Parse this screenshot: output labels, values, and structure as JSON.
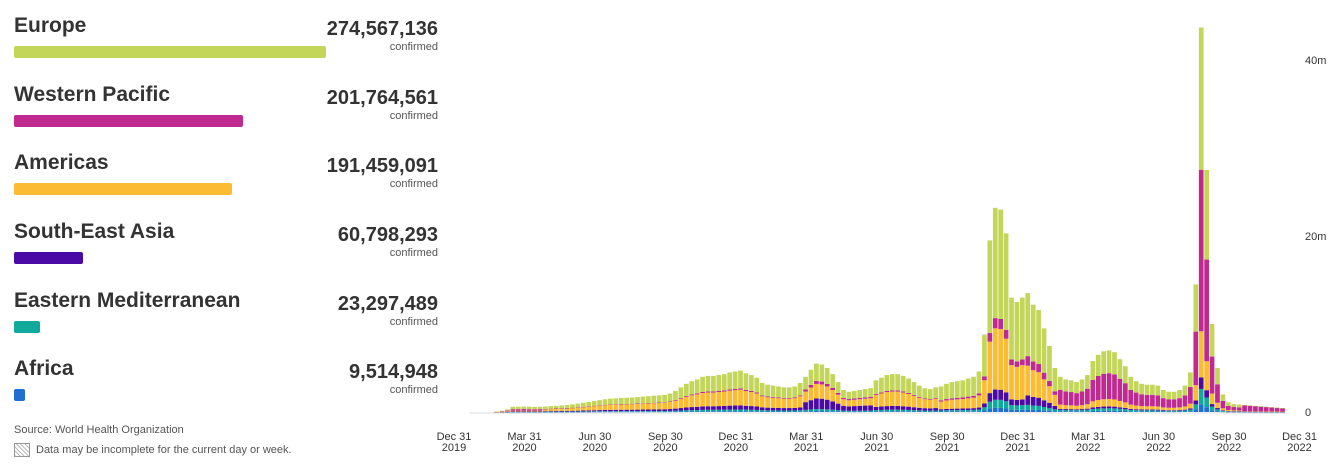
{
  "regions": [
    {
      "name": "Europe",
      "count": "274,567,136",
      "sub": "confirmed",
      "color": "#c4d65a",
      "value": 274567136
    },
    {
      "name": "Western Pacific",
      "count": "201,764,561",
      "sub": "confirmed",
      "color": "#c0298f",
      "value": 201764561
    },
    {
      "name": "Americas",
      "count": "191,459,091",
      "sub": "confirmed",
      "color": "#fbbc33",
      "value": 191459091
    },
    {
      "name": "South-East Asia",
      "count": "60,798,293",
      "sub": "confirmed",
      "color": "#4b0aa5",
      "value": 60798293
    },
    {
      "name": "Eastern Mediterranean",
      "count": "23,297,489",
      "sub": "confirmed",
      "color": "#11a99b",
      "value": 23297489
    },
    {
      "name": "Africa",
      "count": "9,514,948",
      "sub": "confirmed",
      "color": "#1f6fd0",
      "value": 9514948
    }
  ],
  "footer": {
    "source": "Source: World Health Organization",
    "note": "Data may be incomplete for the current day or week."
  },
  "chart_data": {
    "type": "bar",
    "stacked": true,
    "ylim": [
      0,
      44000000
    ],
    "y_ticks": [
      {
        "value": 0,
        "label": "0"
      },
      {
        "value": 20000000,
        "label": "20m"
      },
      {
        "value": 40000000,
        "label": "40m"
      }
    ],
    "x_ticks": [
      {
        "line1": "Dec 31",
        "line2": "2019",
        "week": 0
      },
      {
        "line1": "Mar 31",
        "line2": "2020",
        "week": 13
      },
      {
        "line1": "Jun 30",
        "line2": "2020",
        "week": 26
      },
      {
        "line1": "Sep 30",
        "line2": "2020",
        "week": 39
      },
      {
        "line1": "Dec 31",
        "line2": "2020",
        "week": 52
      },
      {
        "line1": "Mar 31",
        "line2": "2021",
        "week": 65
      },
      {
        "line1": "Jun 30",
        "line2": "2021",
        "week": 78
      },
      {
        "line1": "Sep 30",
        "line2": "2021",
        "week": 91
      },
      {
        "line1": "Dec 31",
        "line2": "2021",
        "week": 104
      },
      {
        "line1": "Mar 31",
        "line2": "2022",
        "week": 117
      },
      {
        "line1": "Jun 30",
        "line2": "2022",
        "week": 130
      },
      {
        "line1": "Sep 30",
        "line2": "2022",
        "week": 143
      },
      {
        "line1": "Dec 31",
        "line2": "2022",
        "week": 156
      }
    ],
    "series": [
      {
        "region": "Africa",
        "color": "#1f6fd0"
      },
      {
        "region": "Eastern Mediterranean",
        "color": "#11a99b"
      },
      {
        "region": "South-East Asia",
        "color": "#4b0aa5"
      },
      {
        "region": "Americas",
        "color": "#fbbc33"
      },
      {
        "region": "Western Pacific",
        "color": "#c0298f"
      },
      {
        "region": "Europe",
        "color": "#c4d65a"
      }
    ],
    "totals": [
      0,
      0,
      0,
      0.05,
      0.15,
      0.3,
      0.6,
      0.6,
      0.62,
      0.6,
      0.58,
      0.6,
      0.62,
      0.66,
      0.7,
      0.74,
      0.8,
      0.86,
      0.95,
      1.05,
      1.15,
      1.25,
      1.35,
      1.45,
      1.52,
      1.55,
      1.6,
      1.62,
      1.65,
      1.7,
      1.75,
      1.8,
      1.85,
      1.9,
      1.95,
      2.1,
      2.4,
      2.8,
      3.2,
      3.5,
      3.7,
      4,
      4.1,
      4.1,
      4.2,
      4.3,
      4.5,
      4.6,
      4.7,
      4.4,
      4.2,
      3.9,
      3.3,
      3.1,
      3,
      2.9,
      2.8,
      2.8,
      2.9,
      3.3,
      4,
      4.8,
      5.5,
      5.4,
      5,
      4.3,
      3.4,
      2.5,
      2.3,
      2.4,
      2.5,
      2.6,
      2.7,
      3.6,
      3.9,
      4.2,
      4.3,
      4.3,
      4.1,
      3.8,
      3.4,
      3,
      2.7,
      2.6,
      2.8,
      2.9,
      3.2,
      3.4,
      3.5,
      3.6,
      3.8,
      4,
      4.6,
      8.8,
      19.5,
      23.2,
      23,
      20.3,
      13,
      12.5,
      13,
      13.5,
      12.2,
      11.6,
      9.5,
      7.5,
      5,
      4,
      3.7,
      3.6,
      3.4,
      3.7,
      4.2,
      5.8,
      6.5,
      6.9,
      7,
      6.8,
      6,
      5.2,
      4,
      3.5,
      3.2,
      3.1,
      3.1,
      3,
      2.5,
      2.3,
      2.3,
      2.5,
      3,
      4.5,
      14.5,
      43.7,
      27.5,
      10,
      5,
      2,
      1.1,
      0.9,
      0.85,
      0.8,
      0.75,
      0.7,
      0.65,
      0.6,
      0.55,
      0.5,
      0.45
    ],
    "unit": "millions of weekly confirmed cases (estimated)"
  }
}
